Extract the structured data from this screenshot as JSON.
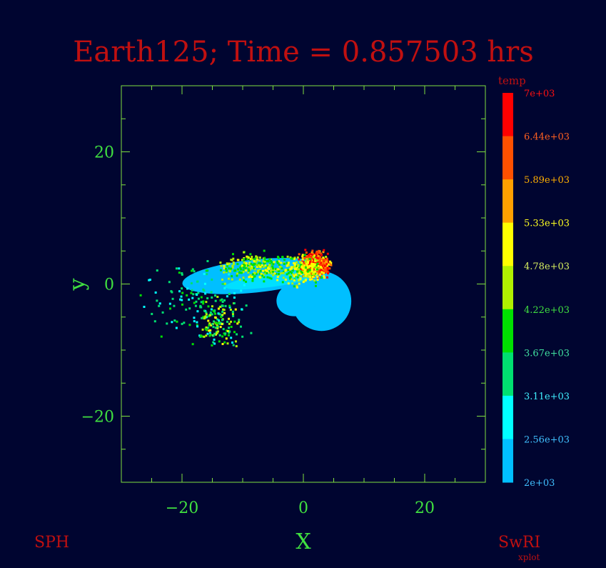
{
  "chart_data": {
    "type": "scatter",
    "title": "Earth125; Time = 0.857503 hrs",
    "xlabel": "X",
    "ylabel": "y",
    "xlim": [
      -30,
      30
    ],
    "ylim": [
      -30,
      30
    ],
    "x_ticks": [
      -20,
      0,
      20
    ],
    "x_tick_labels": [
      "−20",
      "0",
      "20"
    ],
    "y_ticks": [
      -20,
      0,
      20
    ],
    "y_tick_labels": [
      "−20",
      "0",
      "20"
    ],
    "grid": false,
    "colorbar": {
      "label": "temp",
      "range": [
        2000,
        7000
      ],
      "placement": "right",
      "tick_labels": [
        "7e+03",
        "6.44e+03",
        "5.89e+03",
        "5.33e+03",
        "4.78e+03",
        "4.22e+03",
        "3.67e+03",
        "3.11e+03",
        "2.56e+03",
        "2e+03"
      ],
      "band_colors": [
        "#ff0000",
        "#ff5000",
        "#ffa000",
        "#ffff00",
        "#b0f000",
        "#00e000",
        "#00e070",
        "#00ffff",
        "#00bfff"
      ],
      "tick_label_colors": [
        "#ff1010",
        "#ff6020",
        "#ffb000",
        "#ffff20",
        "#d8f060",
        "#40e040",
        "#40e0a0",
        "#40f0ff",
        "#40c0ff",
        "#40c0ff"
      ]
    },
    "regions": [
      {
        "name": "main-body",
        "shape": "disk",
        "cx": 3.0,
        "cy": -2.6,
        "r": 4.9,
        "temp": 2300
      },
      {
        "name": "bridge",
        "shape": "ellipse",
        "cx": -1.0,
        "cy": -2.2,
        "rx": 3.5,
        "ry": 2.6,
        "temp": 2300
      },
      {
        "name": "hot-core",
        "shape": "ellipse",
        "cx": 2.0,
        "cy": 3.2,
        "rx": 3.6,
        "ry": 3.0,
        "temp": 6600
      },
      {
        "name": "tidal-arm",
        "shape": "ellipse",
        "cx": -8.0,
        "cy": 1.2,
        "rx": 12.0,
        "ry": 2.5,
        "temp": 2500
      }
    ]
  },
  "annotations": {
    "left_label": "SPH",
    "right_label": "SwRI",
    "right_sublabel": "xplot"
  },
  "colors": {
    "background": "#000530",
    "axes": "#80e040",
    "title": "#c01010"
  }
}
